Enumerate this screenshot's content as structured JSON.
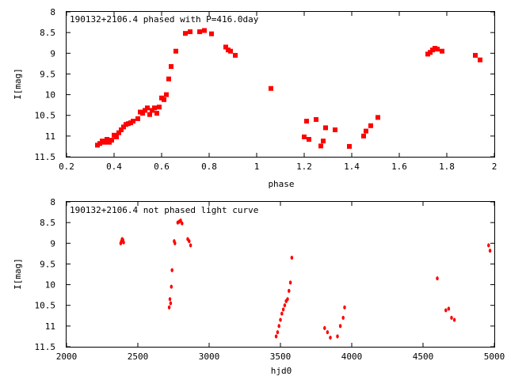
{
  "colors": {
    "points": "#ff0000",
    "axes": "#000000",
    "background": "#ffffff"
  },
  "chart_data": [
    {
      "type": "scatter",
      "title": "190132+2106.4 phased with P=416.0day",
      "xlabel": "phase",
      "ylabel": "I[mag]",
      "xlim": [
        0.2,
        2.0
      ],
      "ylim": [
        8,
        11.5
      ],
      "y_inverted": true,
      "grid": false,
      "marker": "filled-square",
      "x_ticks": [
        "0.2",
        "0.4",
        "0.6",
        "0.8",
        "1",
        "1.2",
        "1.4",
        "1.6",
        "1.8",
        "2"
      ],
      "y_ticks": [
        "8",
        "8.5",
        "9",
        "9.5",
        "10",
        "10.5",
        "11",
        "11.5"
      ],
      "series": [
        {
          "points": [
            [
              0.33,
              11.22
            ],
            [
              0.34,
              11.18
            ],
            [
              0.35,
              11.12
            ],
            [
              0.36,
              11.15
            ],
            [
              0.37,
              11.08
            ],
            [
              0.38,
              11.15
            ],
            [
              0.39,
              11.1
            ],
            [
              0.4,
              10.98
            ],
            [
              0.41,
              11.02
            ],
            [
              0.42,
              10.92
            ],
            [
              0.43,
              10.85
            ],
            [
              0.44,
              10.78
            ],
            [
              0.45,
              10.72
            ],
            [
              0.46,
              10.7
            ],
            [
              0.47,
              10.68
            ],
            [
              0.48,
              10.64
            ],
            [
              0.5,
              10.58
            ],
            [
              0.51,
              10.42
            ],
            [
              0.52,
              10.45
            ],
            [
              0.53,
              10.38
            ],
            [
              0.54,
              10.32
            ],
            [
              0.55,
              10.48
            ],
            [
              0.56,
              10.38
            ],
            [
              0.57,
              10.32
            ],
            [
              0.58,
              10.45
            ],
            [
              0.59,
              10.3
            ],
            [
              0.6,
              10.08
            ],
            [
              0.61,
              10.12
            ],
            [
              0.62,
              10.0
            ],
            [
              0.63,
              9.62
            ],
            [
              0.64,
              9.32
            ],
            [
              0.66,
              8.95
            ],
            [
              0.7,
              8.52
            ],
            [
              0.72,
              8.48
            ],
            [
              0.76,
              8.48
            ],
            [
              0.78,
              8.45
            ],
            [
              0.81,
              8.53
            ],
            [
              0.87,
              8.85
            ],
            [
              0.88,
              8.92
            ],
            [
              0.89,
              8.95
            ],
            [
              0.91,
              9.05
            ],
            [
              1.06,
              9.85
            ],
            [
              1.2,
              11.02
            ],
            [
              1.21,
              10.64
            ],
            [
              1.22,
              11.08
            ],
            [
              1.25,
              10.6
            ],
            [
              1.27,
              11.24
            ],
            [
              1.28,
              11.12
            ],
            [
              1.29,
              10.8
            ],
            [
              1.33,
              10.85
            ],
            [
              1.39,
              11.25
            ],
            [
              1.45,
              11.0
            ],
            [
              1.46,
              10.88
            ],
            [
              1.48,
              10.75
            ],
            [
              1.51,
              10.55
            ],
            [
              1.72,
              9.02
            ],
            [
              1.73,
              8.98
            ],
            [
              1.74,
              8.92
            ],
            [
              1.75,
              8.88
            ],
            [
              1.76,
              8.9
            ],
            [
              1.78,
              8.95
            ],
            [
              1.92,
              9.05
            ],
            [
              1.94,
              9.16
            ]
          ]
        }
      ]
    },
    {
      "type": "scatter",
      "title": "190132+2106.4 not phased light curve",
      "xlabel": "hjd0",
      "ylabel": "I[mag]",
      "xlim": [
        2000,
        5000
      ],
      "ylim": [
        8,
        11.5
      ],
      "y_inverted": true,
      "grid": false,
      "marker": "small-diamond",
      "x_ticks": [
        "2000",
        "2500",
        "3000",
        "3500",
        "4000",
        "4500",
        "5000"
      ],
      "y_ticks": [
        "8",
        "8.5",
        "9",
        "9.5",
        "10",
        "10.5",
        "11",
        "11.5"
      ],
      "series": [
        {
          "points": [
            [
              2380,
              9.0
            ],
            [
              2385,
              8.95
            ],
            [
              2390,
              8.9
            ],
            [
              2395,
              8.92
            ],
            [
              2400,
              8.98
            ],
            [
              2720,
              10.55
            ],
            [
              2725,
              10.35
            ],
            [
              2730,
              10.45
            ],
            [
              2735,
              10.05
            ],
            [
              2740,
              9.65
            ],
            [
              2755,
              8.95
            ],
            [
              2760,
              9.0
            ],
            [
              2780,
              8.5
            ],
            [
              2790,
              8.48
            ],
            [
              2800,
              8.45
            ],
            [
              2810,
              8.52
            ],
            [
              2850,
              8.9
            ],
            [
              2860,
              8.95
            ],
            [
              2870,
              9.05
            ],
            [
              3470,
              11.25
            ],
            [
              3480,
              11.15
            ],
            [
              3490,
              11.0
            ],
            [
              3500,
              10.85
            ],
            [
              3510,
              10.7
            ],
            [
              3520,
              10.6
            ],
            [
              3530,
              10.5
            ],
            [
              3540,
              10.4
            ],
            [
              3550,
              10.35
            ],
            [
              3560,
              10.15
            ],
            [
              3570,
              9.95
            ],
            [
              3580,
              9.35
            ],
            [
              3810,
              11.05
            ],
            [
              3830,
              11.15
            ],
            [
              3850,
              11.28
            ],
            [
              3900,
              11.25
            ],
            [
              3920,
              11.0
            ],
            [
              3940,
              10.8
            ],
            [
              3950,
              10.55
            ],
            [
              4600,
              9.85
            ],
            [
              4660,
              10.62
            ],
            [
              4680,
              10.58
            ],
            [
              4700,
              10.8
            ],
            [
              4720,
              10.85
            ],
            [
              4960,
              9.05
            ],
            [
              4970,
              9.18
            ]
          ]
        }
      ]
    }
  ]
}
